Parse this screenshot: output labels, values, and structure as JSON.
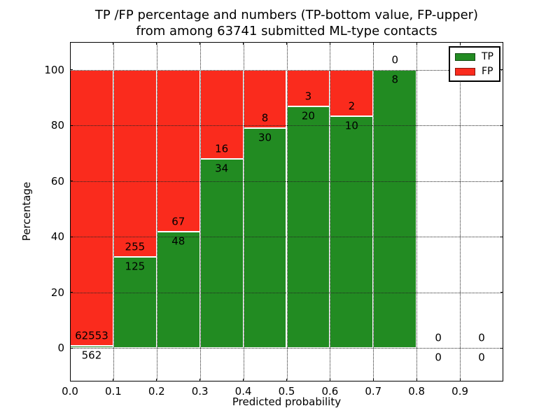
{
  "chart_data": {
    "type": "bar",
    "stacked": true,
    "title_line1": "TP /FP percentage and numbers (TP-bottom value, FP-upper)",
    "title_line2": "from among 63741 submitted ML-type contacts",
    "total_submitted": 63741,
    "xlabel": "Predicted probability",
    "ylabel": "Percentage",
    "xlim": [
      0.0,
      1.0
    ],
    "ylim": [
      -12,
      110
    ],
    "grid": true,
    "y_ticks": [
      0,
      20,
      40,
      60,
      80,
      100
    ],
    "x_tick_values": [
      0.0,
      0.1,
      0.2,
      0.3,
      0.4,
      0.5,
      0.6,
      0.7,
      0.8,
      0.9
    ],
    "x_tick_labels": [
      "0.0",
      "0.1",
      "0.2",
      "0.3",
      "0.4",
      "0.5",
      "0.6",
      "0.7",
      "0.8",
      "0.9"
    ],
    "x_gridline_values": [
      0.1,
      0.2,
      0.3,
      0.4,
      0.5,
      0.6,
      0.7,
      0.8,
      0.9
    ],
    "colors": {
      "tp": "#228B22",
      "fp": "#FA2B1D",
      "bar_edge": "#ffffff",
      "text": "#000000",
      "grid": "#222222"
    },
    "legend": {
      "position": "upper right",
      "entries": [
        {
          "label": "TP",
          "color": "#228B22"
        },
        {
          "label": "FP",
          "color": "#FA2B1D"
        }
      ]
    },
    "bins": [
      {
        "x0": 0.0,
        "x1": 0.1,
        "tp": 562,
        "fp": 62553,
        "tp_pct": 0.89,
        "fp_pct": 99.11
      },
      {
        "x0": 0.1,
        "x1": 0.2,
        "tp": 125,
        "fp": 255,
        "tp_pct": 32.89,
        "fp_pct": 67.11
      },
      {
        "x0": 0.2,
        "x1": 0.3,
        "tp": 48,
        "fp": 67,
        "tp_pct": 41.74,
        "fp_pct": 58.26
      },
      {
        "x0": 0.3,
        "x1": 0.4,
        "tp": 34,
        "fp": 16,
        "tp_pct": 68.0,
        "fp_pct": 32.0
      },
      {
        "x0": 0.4,
        "x1": 0.5,
        "tp": 30,
        "fp": 8,
        "tp_pct": 78.95,
        "fp_pct": 21.05
      },
      {
        "x0": 0.5,
        "x1": 0.6,
        "tp": 20,
        "fp": 3,
        "tp_pct": 86.96,
        "fp_pct": 13.04
      },
      {
        "x0": 0.6,
        "x1": 0.7,
        "tp": 10,
        "fp": 2,
        "tp_pct": 83.33,
        "fp_pct": 16.67
      },
      {
        "x0": 0.7,
        "x1": 0.8,
        "tp": 8,
        "fp": 0,
        "tp_pct": 100.0,
        "fp_pct": 0.0
      },
      {
        "x0": 0.8,
        "x1": 0.9,
        "tp": 0,
        "fp": 0,
        "tp_pct": 0.0,
        "fp_pct": 0.0
      },
      {
        "x0": 0.9,
        "x1": 1.0,
        "tp": 0,
        "fp": 0,
        "tp_pct": 0.0,
        "fp_pct": 0.0
      }
    ]
  }
}
